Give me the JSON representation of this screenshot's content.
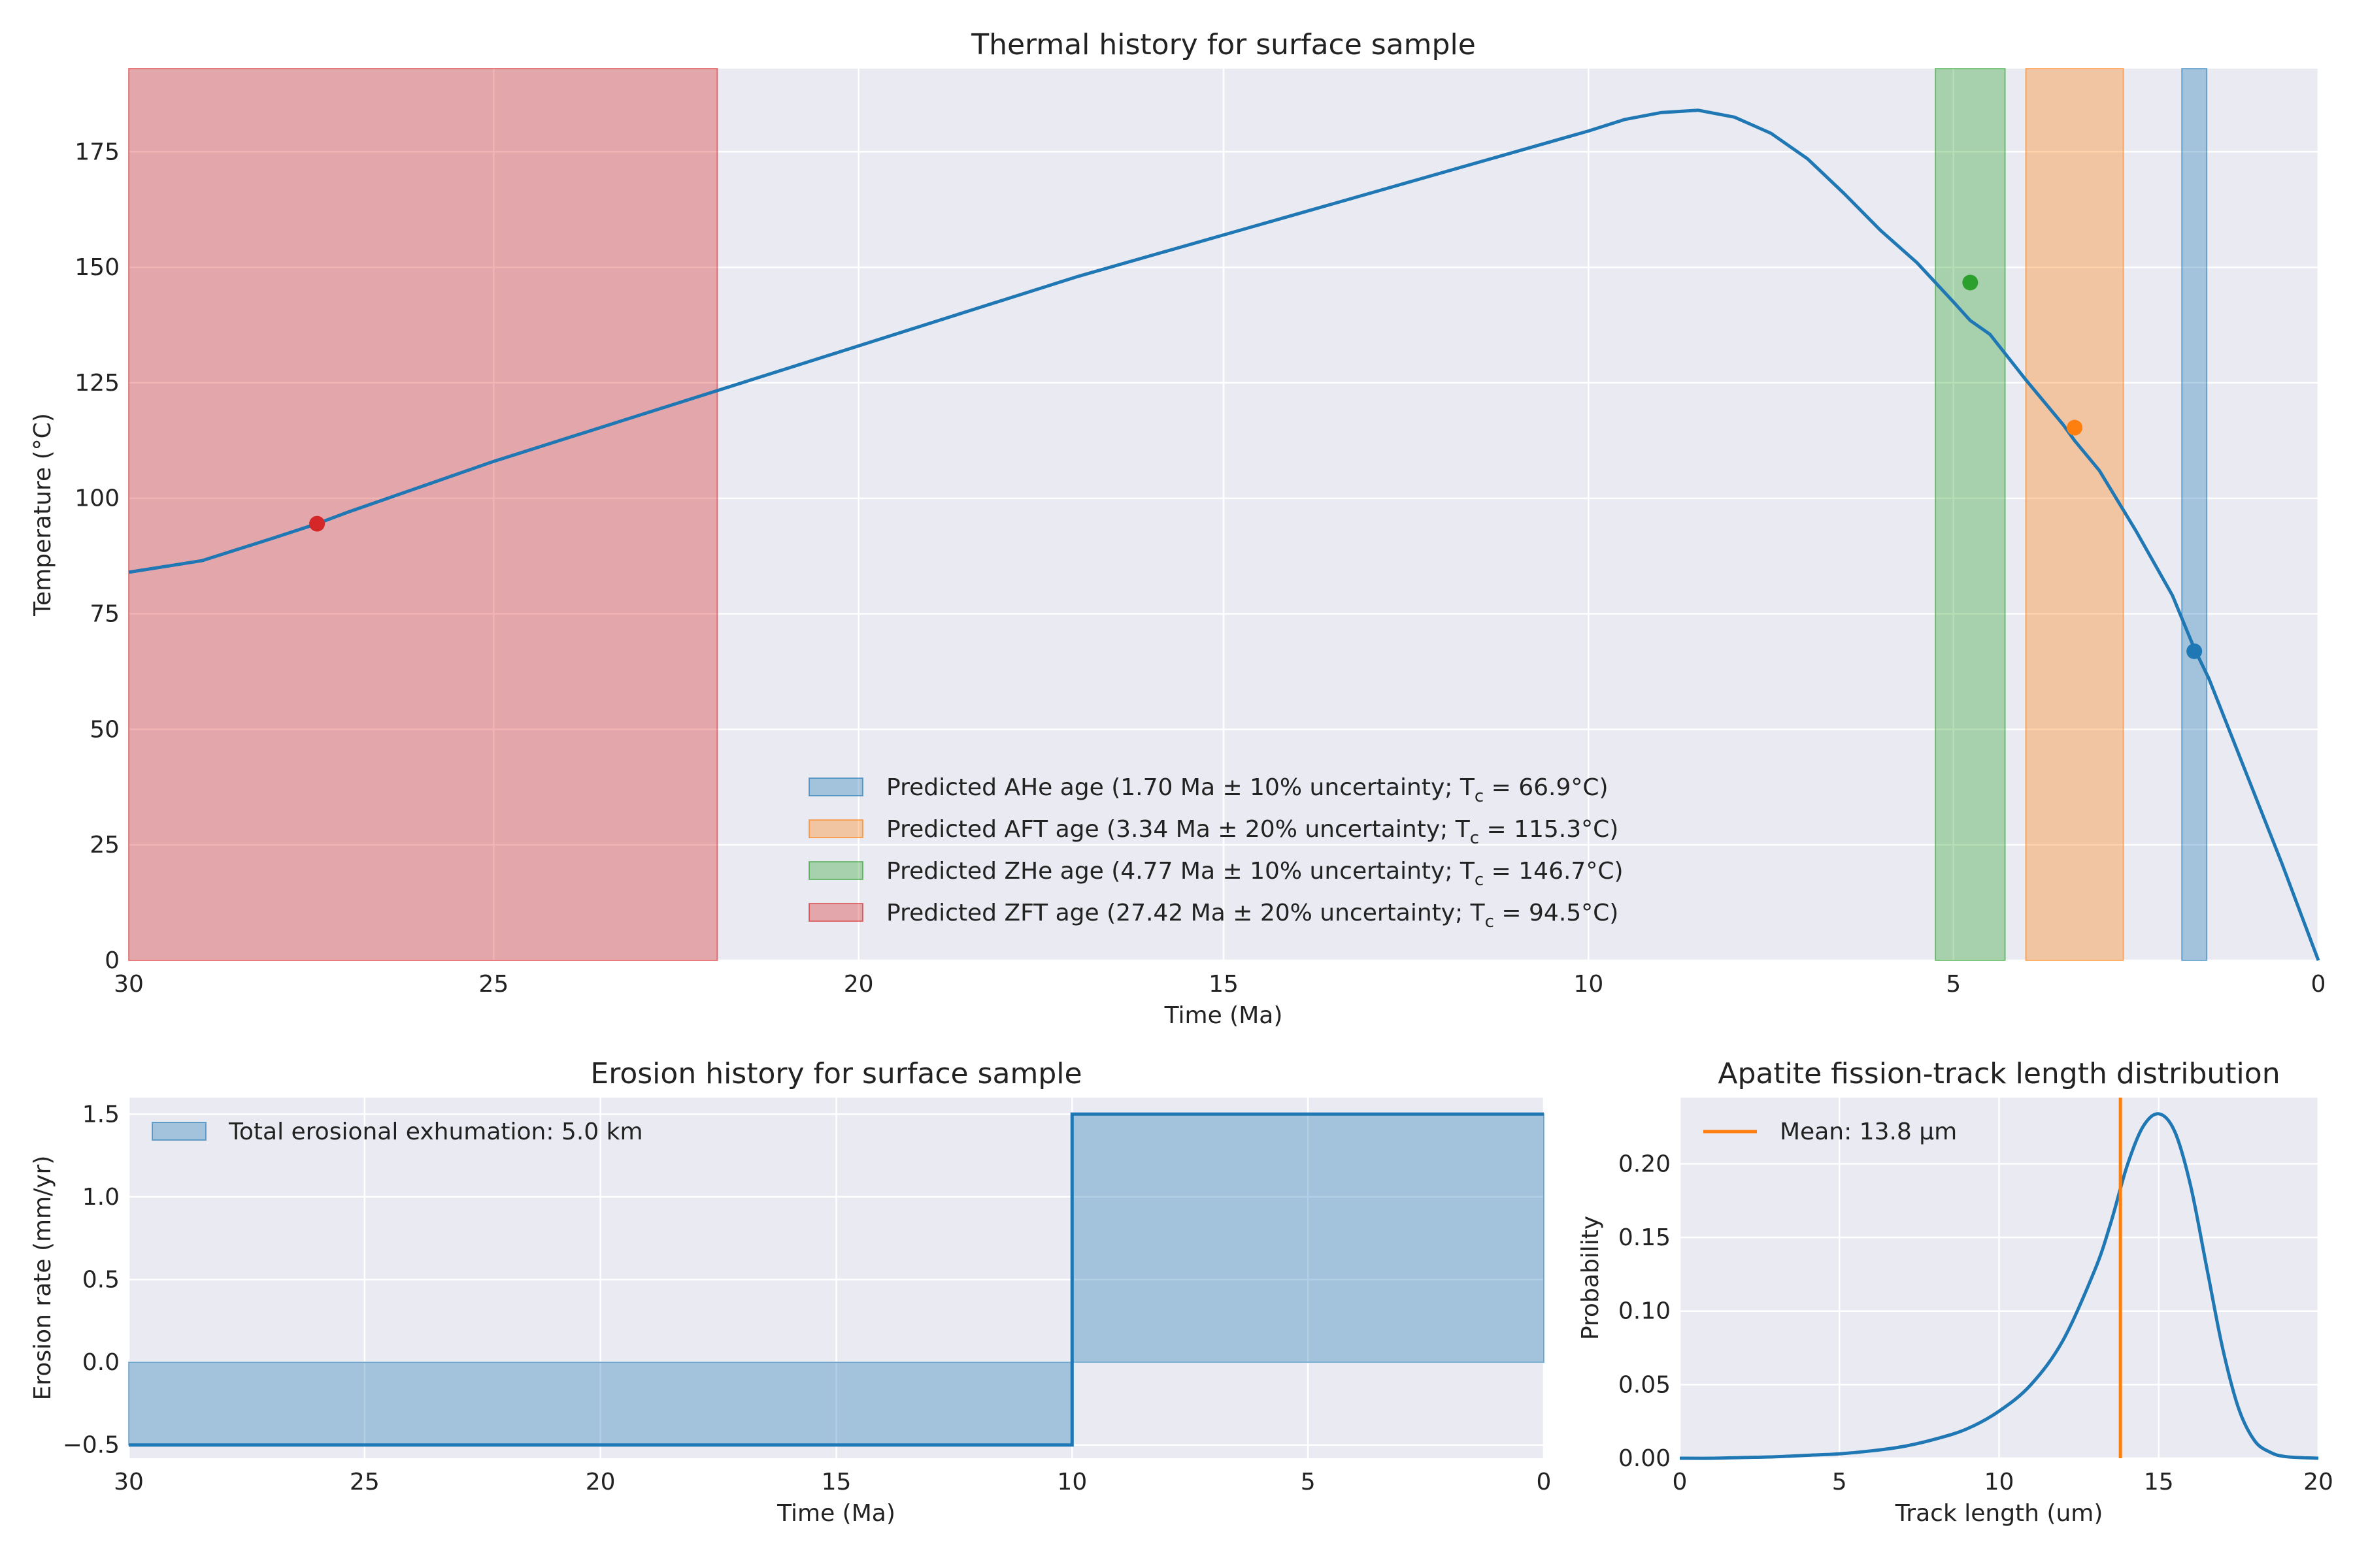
{
  "chart_data": [
    {
      "type": "line",
      "title": "Thermal history for surface sample",
      "xlabel": "Time (Ma)",
      "ylabel": "Temperature (°C)",
      "xlim": [
        30,
        0
      ],
      "ylim": [
        0,
        193
      ],
      "x_ticks": [
        30,
        25,
        20,
        15,
        10,
        5,
        0
      ],
      "y_ticks": [
        0,
        25,
        50,
        75,
        100,
        125,
        150,
        175
      ],
      "grid": true,
      "legend_position": "lower center",
      "series": [
        {
          "x": [
            30,
            29,
            28,
            27.42,
            27,
            26,
            25,
            24,
            23,
            22,
            21,
            20,
            19,
            18,
            17,
            16,
            15,
            14,
            13,
            12,
            11,
            10,
            9.5,
            9,
            8.5,
            8,
            7.5,
            7,
            6.5,
            6,
            5.5,
            5,
            4.77,
            4.5,
            4,
            3.5,
            3.34,
            3,
            2.5,
            2,
            1.7,
            1.5,
            1,
            0.5,
            0
          ],
          "y": [
            84,
            86.5,
            91.5,
            94.5,
            97,
            102.5,
            108,
            113,
            118,
            123,
            128,
            133,
            138,
            143,
            148,
            152.5,
            157,
            161.5,
            166,
            170.5,
            175,
            179.5,
            182,
            183.5,
            184,
            182.5,
            179,
            173.5,
            166,
            158,
            151,
            142.5,
            138.5,
            135.5,
            125.5,
            116,
            112.5,
            106,
            93,
            79,
            67.5,
            61,
            41,
            21,
            0
          ],
          "color": "#1f77b4"
        }
      ],
      "age_markers": [
        {
          "label": "Predicted AHe age (1.70 Ma ± 10% uncertainty; T",
          "tc_label": "c",
          "tc_value": " = 66.9°C)",
          "age": 1.7,
          "uncertainty": 0.1,
          "tc": 66.9,
          "color": "#1f77b4"
        },
        {
          "label": "Predicted AFT age (3.34 Ma ± 20% uncertainty; T",
          "tc_label": "c",
          "tc_value": " = 115.3°C)",
          "age": 3.34,
          "uncertainty": 0.2,
          "tc": 115.3,
          "color": "#ff7f0e"
        },
        {
          "label": "Predicted ZHe age (4.77 Ma ± 10% uncertainty; T",
          "tc_label": "c",
          "tc_value": " = 146.7°C)",
          "age": 4.77,
          "uncertainty": 0.1,
          "tc": 146.7,
          "color": "#2ca02c"
        },
        {
          "label": "Predicted ZFT age (27.42 Ma ± 20% uncertainty; T",
          "tc_label": "c",
          "tc_value": " = 94.5°C)",
          "age": 27.42,
          "uncertainty": 0.2,
          "tc": 94.5,
          "color": "#d62728"
        }
      ]
    },
    {
      "type": "area",
      "title": "Erosion history for surface sample",
      "xlabel": "Time (Ma)",
      "ylabel": "Erosion rate (mm/yr)",
      "xlim": [
        30,
        0
      ],
      "ylim": [
        -0.58,
        1.6
      ],
      "x_ticks": [
        30,
        25,
        20,
        15,
        10,
        5,
        0
      ],
      "y_ticks": [
        -0.5,
        0.0,
        0.5,
        1.0,
        1.5
      ],
      "y_tick_labels": [
        "−0.5",
        "0.0",
        "0.5",
        "1.0",
        "1.5"
      ],
      "grid": true,
      "legend_position": "upper left",
      "series": [
        {
          "name": "Total erosional exhumation: 5.0 km",
          "x": [
            30,
            10,
            10,
            0
          ],
          "y": [
            -0.5,
            -0.5,
            1.5,
            1.5
          ],
          "color": "#1f77b4"
        }
      ]
    },
    {
      "type": "line",
      "title": "Apatite fission-track length distribution",
      "xlabel": "Track length (um)",
      "ylabel": "Probability",
      "xlim": [
        0,
        20
      ],
      "ylim": [
        0,
        0.245
      ],
      "x_ticks": [
        0,
        5,
        10,
        15,
        20
      ],
      "y_ticks": [
        0.0,
        0.05,
        0.1,
        0.15,
        0.2
      ],
      "y_tick_labels": [
        "0.00",
        "0.05",
        "0.10",
        "0.15",
        "0.20"
      ],
      "grid": true,
      "legend_position": "upper left",
      "series": [
        {
          "x": [
            0,
            1,
            2,
            3,
            4,
            5,
            6,
            7,
            8,
            9,
            10,
            11,
            12,
            13,
            13.5,
            14,
            14.5,
            15,
            15.5,
            16,
            16.5,
            17,
            17.5,
            18,
            18.5,
            19,
            20
          ],
          "y": [
            0,
            0,
            0.0005,
            0.001,
            0.002,
            0.003,
            0.005,
            0.008,
            0.013,
            0.02,
            0.032,
            0.05,
            0.08,
            0.128,
            0.16,
            0.198,
            0.225,
            0.234,
            0.222,
            0.185,
            0.13,
            0.075,
            0.034,
            0.012,
            0.004,
            0.001,
            0
          ],
          "color": "#1f77b4"
        }
      ],
      "mean_line": {
        "name": "Mean: 13.8 μm",
        "x": 13.8,
        "color": "#ff7f0e"
      }
    }
  ]
}
